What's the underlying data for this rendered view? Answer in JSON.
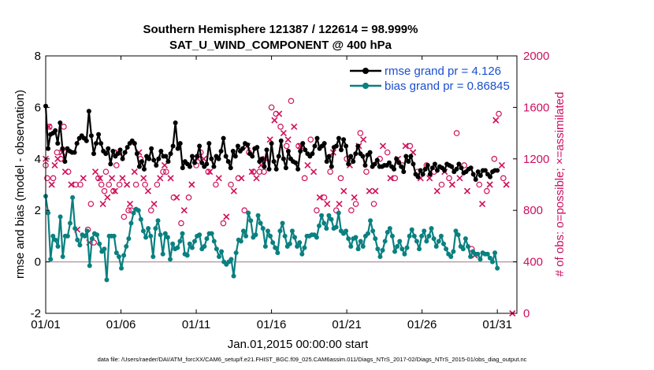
{
  "chart_data": {
    "type": "line",
    "title": "Southern Hemisphere 121387 / 122614 = 98.999%",
    "subtitle": "SAT_U_WIND_COMPONENT @ 400 hPa",
    "xlabel": "Jan.01,2015 00:00:00 start",
    "ylabel": "rmse and bias (model - observation)",
    "y2label": "# of obs: o=possible; ×=assimilated",
    "footer": "data file: /Users/raeder/DAI/ATM_forcXX/CAM6_setup/f.e21.FHIST_BGC.f09_025.CAM6assim.011/Diags_NTrS_2017-02/Diags_NTrS_2015-01/obs_diag_output.nc",
    "x_tick_labels": [
      "01/01",
      "01/06",
      "01/11",
      "01/16",
      "01/21",
      "01/26",
      "01/31"
    ],
    "x_tick_days": [
      1,
      6,
      11,
      16,
      21,
      26,
      31
    ],
    "xlim": [
      1,
      32.3
    ],
    "ylim": [
      -2,
      8
    ],
    "y_ticks": [
      "-2",
      "0",
      "2",
      "4",
      "6",
      "8"
    ],
    "y2lim": [
      0,
      2000
    ],
    "y2_ticks": [
      "0",
      "400",
      "800",
      "1200",
      "1600",
      "2000"
    ],
    "zero_line": 0,
    "colors": {
      "rmse": "#000000",
      "bias": "#0a8080",
      "obs": "#d0105a",
      "zero": "#b8a0a8",
      "legend_text": "#1a4fd0"
    },
    "series": [
      {
        "name": "rmse grand pr = 4.126",
        "key": "rmse",
        "values": [
          6.05,
          4.4,
          4.95,
          5.0,
          5.1,
          4.6,
          5.4,
          4.4,
          3.9,
          4.4,
          4.3,
          4.25,
          4.25,
          4.6,
          4.8,
          4.9,
          4.8,
          4.7,
          5.85,
          4.9,
          4.2,
          4.6,
          4.95,
          4.6,
          4.3,
          4.2,
          4.4,
          3.8,
          4.3,
          4.1,
          4.2,
          4.35,
          4.0,
          4.25,
          4.45,
          4.6,
          4.7,
          4.6,
          4.2,
          3.7,
          3.9,
          3.6,
          4.1,
          4.0,
          4.4,
          3.95,
          3.75,
          4.0,
          4.3,
          4.1,
          4.1,
          3.9,
          4.2,
          4.5,
          5.4,
          4.4,
          4.6,
          3.65,
          3.9,
          3.8,
          3.7,
          4.1,
          3.85,
          4.1,
          4.5,
          3.85,
          3.7,
          3.8,
          4.6,
          4.0,
          3.7,
          4.1,
          4.0,
          4.3,
          4.8,
          4.1,
          3.9,
          3.65,
          4.3,
          4.1,
          4.5,
          4.3,
          4.4,
          4.6,
          4.55,
          4.2,
          4.1,
          4.4,
          4.45,
          3.9,
          4.0,
          3.7,
          4.35,
          3.6,
          4.6,
          3.9,
          3.6,
          4.1,
          4.7,
          4.0,
          3.65,
          4.3,
          4.0,
          3.9,
          3.85,
          3.6,
          4.3,
          4.6,
          4.35,
          4.2,
          4.1,
          4.2,
          4.5,
          4.8,
          4.4,
          4.5,
          4.6,
          3.9,
          4.1,
          3.7,
          4.45,
          4.5,
          4.8,
          4.35,
          4.75,
          4.5,
          3.8,
          4.1,
          3.9,
          4.2,
          4.5,
          4.2,
          4.1,
          3.75,
          4.15,
          4.25,
          3.7,
          3.8,
          3.95,
          3.7,
          3.7,
          3.75,
          3.75,
          3.85,
          3.7,
          3.6,
          4.0,
          3.85,
          3.7,
          3.5,
          4.1,
          3.9,
          4.1,
          3.8,
          3.4,
          3.3,
          3.55,
          3.4,
          3.6,
          3.75,
          3.4,
          3.65,
          3.8,
          3.55,
          3.7,
          3.65,
          3.55,
          3.8,
          3.75,
          3.7,
          3.5,
          3.6,
          3.8,
          3.65,
          3.45,
          3.5,
          3.6,
          3.65,
          3.4,
          3.2,
          3.5,
          3.35,
          3.55,
          3.55,
          3.4,
          3.3,
          3.5,
          3.55,
          3.55
        ]
      },
      {
        "name": "bias grand pr = 0.86845",
        "key": "bias",
        "values": [
          2.55,
          1.9,
          0.1,
          1.0,
          0.85,
          0.6,
          1.75,
          0.2,
          1.0,
          1.0,
          1.5,
          2.5,
          1.3,
          0.85,
          0.65,
          1.05,
          1.0,
          1.2,
          -0.15,
          0.9,
          1.1,
          1.05,
          0.7,
          0.4,
          0.5,
          -0.7,
          1.0,
          1.0,
          1.0,
          0.35,
          0.2,
          -0.25,
          0.25,
          0.6,
          0.9,
          1.5,
          1.9,
          2.05,
          2.0,
          1.65,
          1.2,
          0.95,
          1.3,
          1.0,
          0.2,
          1.3,
          1.6,
          1.05,
          0.3,
          1.1,
          0.95,
          0.1,
          0.7,
          0.5,
          0.55,
          0.8,
          1.1,
          0.3,
          0.25,
          0.7,
          0.55,
          0.8,
          1.0,
          1.05,
          0.5,
          0.6,
          0.9,
          1.1,
          1.1,
          0.8,
          0.5,
          0.2,
          0.4,
          0.0,
          -0.1,
          0.0,
          0.1,
          -0.55,
          0.35,
          0.85,
          0.8,
          1.2,
          1.0,
          1.9,
          1.6,
          0.95,
          1.05,
          1.8,
          1.5,
          1.3,
          0.6,
          1.2,
          1.0,
          0.75,
          0.55,
          0.35,
          1.2,
          1.5,
          1.0,
          0.6,
          0.7,
          1.2,
          0.95,
          0.6,
          0.75,
          0.3,
          0.55,
          1.0,
          1.0,
          1.05,
          1.05,
          0.95,
          1.4,
          1.8,
          1.5,
          1.3,
          1.8,
          1.65,
          1.3,
          1.35,
          1.9,
          1.2,
          1.1,
          1.2,
          0.9,
          0.6,
          0.9,
          0.95,
          0.5,
          0.8,
          0.6,
          1.0,
          1.1,
          1.6,
          1.2,
          0.9,
          0.5,
          0.2,
          0.45,
          0.8,
          1.15,
          1.3,
          1.0,
          0.4,
          0.6,
          0.8,
          0.5,
          0.3,
          0.55,
          1.0,
          1.25,
          1.0,
          0.8,
          0.5,
          1.0,
          1.2,
          0.8,
          1.0,
          1.3,
          0.9,
          0.6,
          0.8,
          1.0,
          0.7,
          0.5,
          0.3,
          0.2,
          0.4,
          1.2,
          1.05,
          0.6,
          0.5,
          0.9,
          0.6,
          0.2,
          0.4,
          0.3,
          0.3,
          0.1,
          0.35,
          0.3,
          0.3,
          0.15,
          0.0,
          0.35,
          -0.25
        ]
      }
    ],
    "obs_possible": [
      [
        1,
        1150
      ],
      [
        1.1,
        1050
      ],
      [
        1.25,
        1450
      ],
      [
        1.5,
        1050
      ],
      [
        1.75,
        1250
      ],
      [
        2,
        1200
      ],
      [
        2.2,
        1450
      ],
      [
        2.5,
        1100
      ],
      [
        3,
        1000
      ],
      [
        3.3,
        1000
      ],
      [
        3.8,
        650
      ],
      [
        4.0,
        850
      ],
      [
        4.2,
        550
      ],
      [
        4.5,
        1050
      ],
      [
        4.7,
        1000
      ],
      [
        4.9,
        950
      ],
      [
        5.0,
        1100
      ],
      [
        5.2,
        1000
      ],
      [
        5.5,
        950
      ],
      [
        5.7,
        1150
      ],
      [
        5.9,
        1000
      ],
      [
        6.2,
        750
      ],
      [
        6.5,
        800
      ],
      [
        6.7,
        800
      ],
      [
        7.0,
        1000
      ],
      [
        7.3,
        1200
      ],
      [
        7.6,
        1000
      ],
      [
        8.0,
        800
      ],
      [
        8.4,
        1000
      ],
      [
        8.8,
        1100
      ],
      [
        9.0,
        1100
      ],
      [
        9.5,
        900
      ],
      [
        10.0,
        700
      ],
      [
        10.5,
        900
      ],
      [
        11.0,
        1150
      ],
      [
        11.3,
        1250
      ],
      [
        11.8,
        1100
      ],
      [
        12.3,
        1000
      ],
      [
        12.8,
        700
      ],
      [
        13.3,
        1000
      ],
      [
        13.8,
        1050
      ],
      [
        14.2,
        800
      ],
      [
        14.5,
        1250
      ],
      [
        14.8,
        1100
      ],
      [
        15.2,
        1100
      ],
      [
        15.5,
        1100
      ],
      [
        16.0,
        1600
      ],
      [
        16.3,
        1550
      ],
      [
        16.6,
        1450
      ],
      [
        17.0,
        1300
      ],
      [
        17.3,
        1650
      ],
      [
        17.8,
        1300
      ],
      [
        18.2,
        1050
      ],
      [
        18.6,
        1350
      ],
      [
        19.0,
        800
      ],
      [
        19.5,
        900
      ],
      [
        19.9,
        1100
      ],
      [
        20.3,
        800
      ],
      [
        20.6,
        1050
      ],
      [
        21.0,
        1200
      ],
      [
        21.3,
        800
      ],
      [
        21.6,
        850
      ],
      [
        21.9,
        1400
      ],
      [
        22.3,
        1100
      ],
      [
        22.8,
        850
      ],
      [
        23.2,
        1200
      ],
      [
        23.7,
        1250
      ],
      [
        24.2,
        1050
      ],
      [
        24.7,
        1150
      ],
      [
        25.2,
        1300
      ],
      [
        25.7,
        1100
      ],
      [
        26.3,
        1150
      ],
      [
        26.8,
        1100
      ],
      [
        27.3,
        1000
      ],
      [
        27.8,
        1050
      ],
      [
        28.3,
        1400
      ],
      [
        28.8,
        1150
      ],
      [
        29.3,
        500
      ],
      [
        29.8,
        1000
      ],
      [
        30.3,
        950
      ],
      [
        30.8,
        1200
      ],
      [
        31.1,
        1550
      ],
      [
        31.4,
        1050
      ]
    ],
    "obs_assimilated": [
      [
        1,
        1200
      ],
      [
        1.2,
        1450
      ],
      [
        1.4,
        1000
      ],
      [
        1.6,
        1150
      ],
      [
        1.8,
        1200
      ],
      [
        2.1,
        1250
      ],
      [
        2.3,
        1100
      ],
      [
        2.7,
        1000
      ],
      [
        3.1,
        650
      ],
      [
        3.5,
        1050
      ],
      [
        3.9,
        550
      ],
      [
        4.3,
        1100
      ],
      [
        4.6,
        1050
      ],
      [
        4.8,
        850
      ],
      [
        5.1,
        900
      ],
      [
        5.4,
        1050
      ],
      [
        5.6,
        950
      ],
      [
        5.8,
        1250
      ],
      [
        6.1,
        1050
      ],
      [
        6.4,
        1000
      ],
      [
        6.6,
        850
      ],
      [
        6.9,
        1100
      ],
      [
        7.2,
        1250
      ],
      [
        7.5,
        1050
      ],
      [
        7.8,
        950
      ],
      [
        8.2,
        850
      ],
      [
        8.6,
        1050
      ],
      [
        8.9,
        1150
      ],
      [
        9.3,
        1050
      ],
      [
        9.7,
        900
      ],
      [
        10.2,
        800
      ],
      [
        10.7,
        1000
      ],
      [
        11.1,
        1200
      ],
      [
        11.5,
        1200
      ],
      [
        11.9,
        1100
      ],
      [
        12.5,
        1050
      ],
      [
        13.0,
        750
      ],
      [
        13.5,
        950
      ],
      [
        14.0,
        1050
      ],
      [
        14.4,
        1300
      ],
      [
        14.7,
        1100
      ],
      [
        15.0,
        1050
      ],
      [
        15.3,
        1150
      ],
      [
        15.6,
        1200
      ],
      [
        15.9,
        1350
      ],
      [
        16.2,
        1500
      ],
      [
        16.5,
        1550
      ],
      [
        16.8,
        1400
      ],
      [
        17.1,
        1350
      ],
      [
        17.5,
        1450
      ],
      [
        17.9,
        1300
      ],
      [
        18.4,
        1150
      ],
      [
        18.8,
        1100
      ],
      [
        19.2,
        900
      ],
      [
        19.7,
        850
      ],
      [
        20.1,
        1250
      ],
      [
        20.5,
        850
      ],
      [
        20.8,
        950
      ],
      [
        21.2,
        1150
      ],
      [
        21.5,
        900
      ],
      [
        21.8,
        1300
      ],
      [
        22.1,
        1350
      ],
      [
        22.5,
        950
      ],
      [
        22.9,
        950
      ],
      [
        23.4,
        1300
      ],
      [
        23.9,
        1050
      ],
      [
        24.4,
        1200
      ],
      [
        24.9,
        1300
      ],
      [
        25.4,
        1250
      ],
      [
        25.9,
        1050
      ],
      [
        26.5,
        1050
      ],
      [
        27.0,
        950
      ],
      [
        27.5,
        1100
      ],
      [
        28.0,
        1000
      ],
      [
        28.5,
        1050
      ],
      [
        29.0,
        950
      ],
      [
        29.5,
        450
      ],
      [
        30.0,
        850
      ],
      [
        30.5,
        1000
      ],
      [
        30.9,
        1500
      ],
      [
        31.3,
        1150
      ],
      [
        31.6,
        1000
      ],
      [
        32.0,
        0
      ]
    ]
  }
}
